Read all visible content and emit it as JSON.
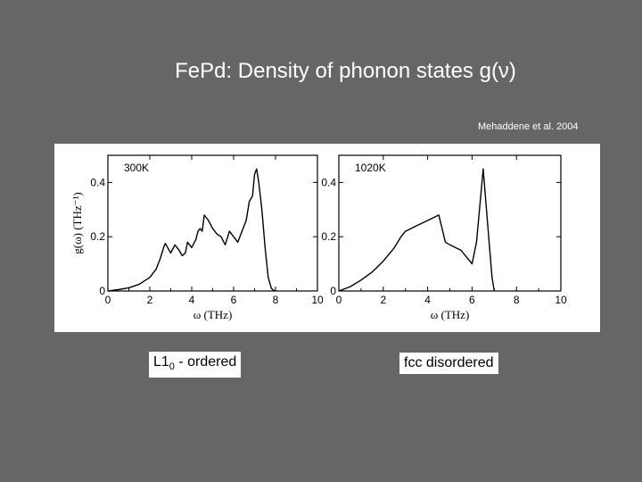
{
  "slide": {
    "title": "FePd: Density of phonon states g(ν)",
    "citation": "Mehaddene et al. 2004",
    "caption_left": {
      "prefix": "L1",
      "subscript": "0",
      "suffix": " - ordered"
    },
    "caption_right": "fcc disordered"
  },
  "chart_data": [
    {
      "type": "line",
      "title": "300K",
      "xlabel": "ω (THz)",
      "ylabel": "g(ω) (THz⁻¹)",
      "xlim": [
        0,
        10
      ],
      "ylim": [
        0,
        0.5
      ],
      "xticks": [
        0,
        2,
        4,
        6,
        8,
        10
      ],
      "yticks": [
        0,
        0.2,
        0.4
      ],
      "x": [
        0,
        0.5,
        1.0,
        1.5,
        2.0,
        2.3,
        2.5,
        2.7,
        2.75,
        2.85,
        3.0,
        3.2,
        3.4,
        3.55,
        3.7,
        3.8,
        4.0,
        4.2,
        4.3,
        4.4,
        4.5,
        4.6,
        4.8,
        5.0,
        5.1,
        5.2,
        5.4,
        5.6,
        5.8,
        6.0,
        6.2,
        6.4,
        6.6,
        6.75,
        6.9,
        7.0,
        7.1,
        7.2,
        7.35,
        7.5,
        7.65,
        7.8,
        7.9,
        8.0
      ],
      "y": [
        0,
        0.005,
        0.012,
        0.025,
        0.05,
        0.08,
        0.12,
        0.17,
        0.175,
        0.16,
        0.14,
        0.17,
        0.15,
        0.13,
        0.14,
        0.18,
        0.16,
        0.19,
        0.22,
        0.23,
        0.22,
        0.28,
        0.26,
        0.23,
        0.22,
        0.21,
        0.2,
        0.17,
        0.22,
        0.2,
        0.18,
        0.22,
        0.26,
        0.33,
        0.35,
        0.43,
        0.45,
        0.4,
        0.3,
        0.16,
        0.05,
        0.01,
        0.003,
        0
      ]
    },
    {
      "type": "line",
      "title": "1020K",
      "xlabel": "ω (THz)",
      "ylabel": "",
      "xlim": [
        0,
        10
      ],
      "ylim": [
        0,
        0.5
      ],
      "xticks": [
        0,
        2,
        4,
        6,
        8,
        10
      ],
      "yticks": [
        0,
        0.2,
        0.4
      ],
      "x": [
        0,
        0.5,
        1.0,
        1.5,
        2.0,
        2.5,
        2.8,
        3.0,
        3.5,
        4.0,
        4.5,
        4.8,
        5.0,
        5.5,
        6.0,
        6.2,
        6.4,
        6.5,
        6.7,
        6.9,
        7.0
      ],
      "y": [
        0,
        0.015,
        0.04,
        0.07,
        0.11,
        0.16,
        0.2,
        0.22,
        0.24,
        0.26,
        0.28,
        0.18,
        0.17,
        0.15,
        0.1,
        0.18,
        0.36,
        0.45,
        0.25,
        0.05,
        0
      ]
    }
  ]
}
